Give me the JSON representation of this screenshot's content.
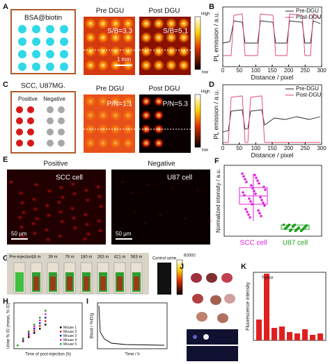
{
  "panel_labels": [
    "A",
    "B",
    "C",
    "D",
    "E",
    "F",
    "G",
    "H",
    "I",
    "J",
    "K"
  ],
  "a": {
    "box_label": "BSA@biotin",
    "pre": "Pre DGU",
    "post": "Post DGU",
    "pre_ratio": "S/B=3.3",
    "post_ratio": "S/B=5.1",
    "scale": "1 mm",
    "high": "High",
    "low": "low"
  },
  "b": {
    "xticks": [
      0,
      50,
      100,
      150,
      200,
      250,
      300
    ],
    "xlabel": "Distance / pixel",
    "ylabel": "PL emission / a.u.",
    "legend": [
      "Pre-DGU",
      "Post-DGU"
    ]
  },
  "c": {
    "box_label": "SCC, U87MG.",
    "positive": "Positive",
    "negative": "Negative",
    "pre": "Pre DGU",
    "post": "Post DGU",
    "pre_ratio": "P/N=1.1",
    "post_ratio": "P/N=5.3",
    "high": "High",
    "low": "low"
  },
  "d": {
    "xticks": [
      0,
      50,
      100,
      150,
      200,
      250,
      300
    ],
    "xlabel": "Distance / pixel",
    "ylabel": "PL emission / a.u.",
    "legend": [
      "Pre-DGU",
      "Post-DGU"
    ]
  },
  "e": {
    "positive": "Positive",
    "negative": "Negative",
    "cell1": "SCC cell",
    "cell2": "U87 cell",
    "scale": "50 µm"
  },
  "f": {
    "ylabel": "Normalized intensity / a.u.",
    "categories": [
      "SCC cell",
      "U87 cell"
    ]
  },
  "g": {
    "times": [
      "Pre-injection",
      "18 m",
      "39 m",
      "79 m",
      "180 m",
      "263 m",
      "421 m",
      "583 m"
    ],
    "control": "Control urine",
    "colorbar_max": 60000
  },
  "h": {
    "legend": [
      "Mouse 1",
      "Mouse 2",
      "Mouse 3",
      "Mouse 4",
      "Mouse 5"
    ],
    "xlabel": "Time of post-injection (h)",
    "ylabel": "Urine % ID (mean, % ID)"
  },
  "i": {
    "xlabel": "Time / h",
    "ylabel": "Blood / %ID/g"
  },
  "k": {
    "ylabel": "Fluorescence intensity",
    "tumor": "Tumor"
  }
}
